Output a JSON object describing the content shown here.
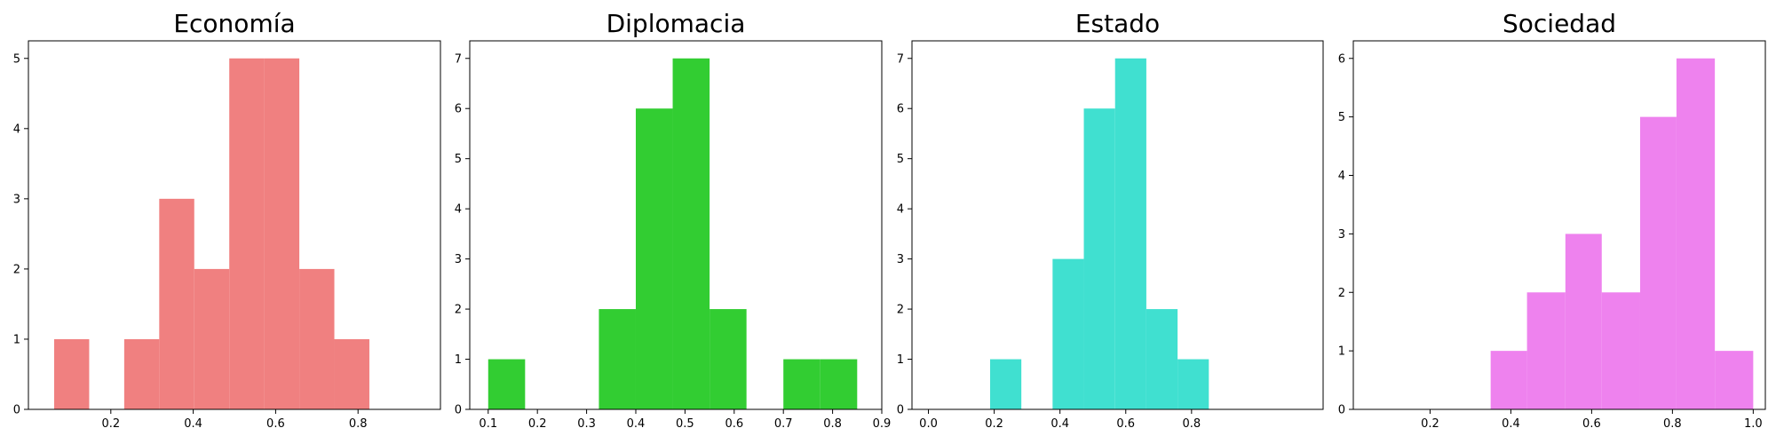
{
  "chart_data": [
    {
      "type": "bar",
      "title": "Economía",
      "color": "#f08080",
      "xlim": [
        0.0,
        1.0
      ],
      "ylim": [
        0,
        5.25
      ],
      "xticks": [
        0.2,
        0.4,
        0.6,
        0.8
      ],
      "xtick_labels": [
        "0.2",
        "0.4",
        "0.6",
        "0.8"
      ],
      "yticks": [
        0,
        1,
        2,
        3,
        4,
        5
      ],
      "ytick_labels": [
        "0",
        "1",
        "2",
        "3",
        "4",
        "5"
      ],
      "bins": [
        {
          "start": 0.0625,
          "end": 0.1475,
          "count": 1
        },
        {
          "start": 0.1475,
          "end": 0.2325,
          "count": 0
        },
        {
          "start": 0.2325,
          "end": 0.3175,
          "count": 1
        },
        {
          "start": 0.3175,
          "end": 0.4025,
          "count": 3
        },
        {
          "start": 0.4025,
          "end": 0.4875,
          "count": 2
        },
        {
          "start": 0.4875,
          "end": 0.5725,
          "count": 5
        },
        {
          "start": 0.5725,
          "end": 0.6575,
          "count": 5
        },
        {
          "start": 0.6575,
          "end": 0.7425,
          "count": 2
        },
        {
          "start": 0.7425,
          "end": 0.8275,
          "count": 1
        }
      ]
    },
    {
      "type": "bar",
      "title": "Diplomacia",
      "color": "#32cd32",
      "xlim": [
        0.0625,
        0.9
      ],
      "ylim": [
        0,
        7.35
      ],
      "xticks": [
        0.1,
        0.2,
        0.3,
        0.4,
        0.5,
        0.6,
        0.7,
        0.8,
        0.9
      ],
      "xtick_labels": [
        "0.1",
        "0.2",
        "0.3",
        "0.4",
        "0.5",
        "0.6",
        "0.7",
        "0.8",
        "0.9"
      ],
      "yticks": [
        0,
        1,
        2,
        3,
        4,
        5,
        6,
        7
      ],
      "ytick_labels": [
        "0",
        "1",
        "2",
        "3",
        "4",
        "5",
        "6",
        "7"
      ],
      "bins": [
        {
          "start": 0.1,
          "end": 0.175,
          "count": 1
        },
        {
          "start": 0.175,
          "end": 0.25,
          "count": 0
        },
        {
          "start": 0.25,
          "end": 0.325,
          "count": 0
        },
        {
          "start": 0.325,
          "end": 0.4,
          "count": 2
        },
        {
          "start": 0.4,
          "end": 0.475,
          "count": 6
        },
        {
          "start": 0.475,
          "end": 0.55,
          "count": 7
        },
        {
          "start": 0.55,
          "end": 0.625,
          "count": 2
        },
        {
          "start": 0.625,
          "end": 0.7,
          "count": 0
        },
        {
          "start": 0.7,
          "end": 0.775,
          "count": 1
        },
        {
          "start": 0.775,
          "end": 0.85,
          "count": 1
        }
      ]
    },
    {
      "type": "bar",
      "title": "Estado",
      "color": "#40e0d0",
      "xlim": [
        -0.05,
        1.2
      ],
      "ylim": [
        0,
        7.35
      ],
      "xticks": [
        0.0,
        0.2,
        0.4,
        0.6,
        0.8
      ],
      "xtick_labels": [
        "0.0",
        "0.2",
        "0.4",
        "0.6",
        "0.8"
      ],
      "yticks": [
        0,
        1,
        2,
        3,
        4,
        5,
        6,
        7
      ],
      "ytick_labels": [
        "0",
        "1",
        "2",
        "3",
        "4",
        "5",
        "6",
        "7"
      ],
      "bins": [
        {
          "start": 0.1875,
          "end": 0.2825,
          "count": 1
        },
        {
          "start": 0.2825,
          "end": 0.3775,
          "count": 0
        },
        {
          "start": 0.3775,
          "end": 0.4725,
          "count": 3
        },
        {
          "start": 0.4725,
          "end": 0.5675,
          "count": 6
        },
        {
          "start": 0.5675,
          "end": 0.6625,
          "count": 7
        },
        {
          "start": 0.6625,
          "end": 0.7575,
          "count": 2
        },
        {
          "start": 0.7575,
          "end": 0.8525,
          "count": 1
        }
      ]
    },
    {
      "type": "bar",
      "title": "Sociedad",
      "color": "#ee82ee",
      "xlim": [
        0.01,
        1.03
      ],
      "ylim": [
        0,
        6.3
      ],
      "xticks": [
        0.2,
        0.4,
        0.6,
        0.8,
        1.0
      ],
      "xtick_labels": [
        "0.2",
        "0.4",
        "0.6",
        "0.8",
        "1.0"
      ],
      "yticks": [
        0,
        1,
        2,
        3,
        4,
        5,
        6
      ],
      "ytick_labels": [
        "0",
        "1",
        "2",
        "3",
        "4",
        "5",
        "6"
      ],
      "bins": [
        {
          "start": 0.35,
          "end": 0.44,
          "count": 1
        },
        {
          "start": 0.44,
          "end": 0.535,
          "count": 2
        },
        {
          "start": 0.535,
          "end": 0.625,
          "count": 3
        },
        {
          "start": 0.625,
          "end": 0.72,
          "count": 2
        },
        {
          "start": 0.72,
          "end": 0.81,
          "count": 5
        },
        {
          "start": 0.81,
          "end": 0.905,
          "count": 6
        },
        {
          "start": 0.905,
          "end": 1.0,
          "count": 1
        }
      ]
    }
  ]
}
